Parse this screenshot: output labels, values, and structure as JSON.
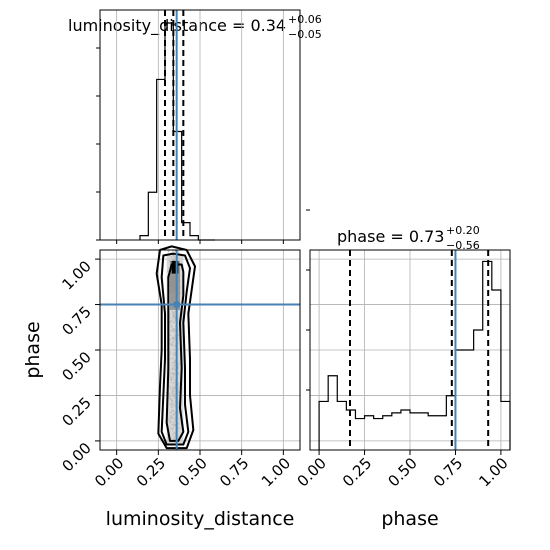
{
  "chart_data": {
    "type": "corner",
    "parameters": [
      {
        "name": "luminosity_distance",
        "title": "luminosity_distance",
        "median": "0.34",
        "err_plus": "+0.06",
        "err_minus": "−0.05",
        "true_value": 0.36,
        "quantiles": [
          0.29,
          0.34,
          0.4
        ],
        "range": [
          -0.1,
          1.1
        ],
        "histogram": {
          "bins": [
            0.14,
            0.19,
            0.24,
            0.29,
            0.34,
            0.39,
            0.44,
            0.49,
            0.54,
            0.59
          ],
          "values": [
            0.05,
            0.55,
            1.85,
            2.5,
            1.25,
            0.2,
            0.05,
            0.0,
            0.0
          ]
        }
      },
      {
        "name": "phase",
        "title": "phase",
        "median": "0.73",
        "err_plus": "+0.20",
        "err_minus": "−0.56",
        "true_value": 0.75,
        "quantiles": [
          0.17,
          0.73,
          0.93
        ],
        "range": [
          -0.05,
          1.05
        ],
        "histogram": {
          "bins": [
            -0.0,
            0.05,
            0.1,
            0.15,
            0.2,
            0.25,
            0.3,
            0.35,
            0.4,
            0.45,
            0.5,
            0.55,
            0.6,
            0.65,
            0.7,
            0.75,
            0.8,
            0.85,
            0.9,
            0.95,
            1.0,
            1.05
          ],
          "values": [
            0.17,
            0.26,
            0.17,
            0.14,
            0.11,
            0.12,
            0.11,
            0.12,
            0.13,
            0.14,
            0.13,
            0.13,
            0.12,
            0.12,
            0.19,
            0.35,
            0.35,
            0.42,
            0.66,
            0.56,
            0.17
          ]
        }
      }
    ],
    "ticks": {
      "x": [
        "0.00",
        "0.25",
        "0.50",
        "0.75",
        "1.00"
      ],
      "y": [
        "0.00",
        "0.25",
        "0.50",
        "0.75",
        "1.00"
      ]
    },
    "xlabels": [
      "luminosity_distance",
      "phase"
    ],
    "ylabel": "phase",
    "grid": true,
    "colors": {
      "line": "#000000",
      "truth": "#4682b4",
      "grid": "#b0b0b0",
      "scatter": "#7f7f7f",
      "density": "#c8c8c8"
    },
    "contours": [
      [
        [
          0.33,
          0.97
        ],
        [
          0.39,
          0.97
        ],
        [
          0.4,
          0.93
        ],
        [
          0.4,
          0.8
        ],
        [
          0.38,
          0.65
        ],
        [
          0.39,
          0.4
        ],
        [
          0.38,
          0.18
        ],
        [
          0.4,
          0.05
        ],
        [
          0.37,
          0.0
        ],
        [
          0.32,
          0.0
        ],
        [
          0.3,
          0.1
        ],
        [
          0.31,
          0.4
        ],
        [
          0.31,
          0.7
        ],
        [
          0.31,
          0.9
        ]
      ],
      [
        [
          0.28,
          1.02
        ],
        [
          0.34,
          1.03
        ],
        [
          0.41,
          1.02
        ],
        [
          0.44,
          0.95
        ],
        [
          0.42,
          0.82
        ],
        [
          0.4,
          0.65
        ],
        [
          0.41,
          0.4
        ],
        [
          0.41,
          0.2
        ],
        [
          0.43,
          0.05
        ],
        [
          0.4,
          -0.02
        ],
        [
          0.3,
          -0.02
        ],
        [
          0.27,
          0.05
        ],
        [
          0.28,
          0.25
        ],
        [
          0.29,
          0.45
        ],
        [
          0.29,
          0.7
        ],
        [
          0.27,
          0.9
        ]
      ],
      [
        [
          0.26,
          1.05
        ],
        [
          0.33,
          1.07
        ],
        [
          0.42,
          1.05
        ],
        [
          0.47,
          0.96
        ],
        [
          0.45,
          0.83
        ],
        [
          0.43,
          0.7
        ],
        [
          0.44,
          0.45
        ],
        [
          0.44,
          0.25
        ],
        [
          0.46,
          0.06
        ],
        [
          0.42,
          -0.04
        ],
        [
          0.3,
          -0.04
        ],
        [
          0.25,
          0.04
        ],
        [
          0.26,
          0.3
        ],
        [
          0.27,
          0.5
        ],
        [
          0.27,
          0.75
        ],
        [
          0.24,
          0.92
        ]
      ]
    ]
  }
}
